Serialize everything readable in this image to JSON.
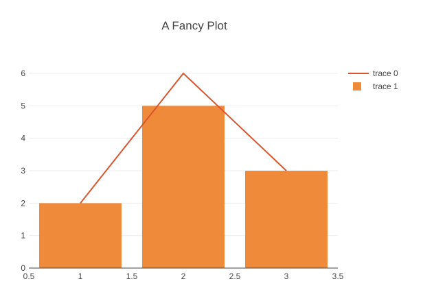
{
  "chart_data": {
    "type": "bar",
    "title": "A Fancy Plot",
    "xlabel": "",
    "ylabel": "",
    "xlim": [
      0.5,
      3.5
    ],
    "ylim": [
      0,
      6
    ],
    "grid": true,
    "legend_position": "top-right",
    "x_ticks": [
      0.5,
      1,
      1.5,
      2,
      2.5,
      3,
      3.5
    ],
    "x_tick_labels": [
      "0.5",
      "1",
      "1.5",
      "2",
      "2.5",
      "3",
      "3.5"
    ],
    "y_ticks": [
      0,
      1,
      2,
      3,
      4,
      5,
      6
    ],
    "y_tick_labels": [
      "0",
      "1",
      "2",
      "3",
      "4",
      "5",
      "6"
    ],
    "series": [
      {
        "name": "trace 0",
        "type": "line",
        "color": "#d9552f",
        "x": [
          1,
          2,
          3
        ],
        "y": [
          2,
          6,
          3
        ]
      },
      {
        "name": "trace 1",
        "type": "bar",
        "color": "#ef8a3a",
        "x": [
          1,
          2,
          3
        ],
        "y": [
          2,
          5,
          3
        ]
      }
    ]
  }
}
